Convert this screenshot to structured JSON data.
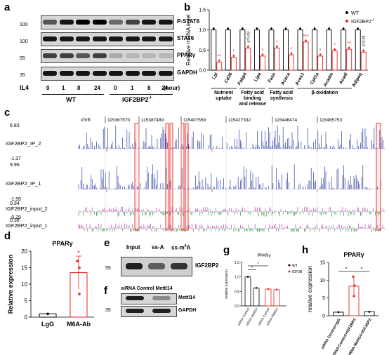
{
  "panel_a": {
    "label": "a",
    "rows": [
      {
        "mw": "100",
        "name": "P-STAT6"
      },
      {
        "mw": "100",
        "name": "STAT6"
      },
      {
        "mw": "55",
        "name": "PPARγ"
      },
      {
        "mw": "35",
        "name": "GAPDH"
      }
    ],
    "il4_label": "IL4",
    "times": [
      "0",
      "1",
      "8",
      "24",
      "0",
      "1",
      "8",
      "24"
    ],
    "unit": "(hour)",
    "wt": "WT",
    "ko": "IGF2BP2",
    "ko_sup": "-/-",
    "band_intensity": {
      "P-STAT6": [
        0.6,
        0.9,
        1.0,
        1.0,
        0.5,
        0.7,
        0.9,
        0.9
      ],
      "STAT6": [
        0.9,
        0.9,
        0.9,
        0.9,
        0.9,
        0.9,
        0.9,
        0.9
      ],
      "PPARγ": [
        0.7,
        0.7,
        0.6,
        0.7,
        0.2,
        0.15,
        0.15,
        0.15
      ],
      "GAPDH": [
        0.9,
        0.9,
        0.9,
        0.9,
        0.9,
        0.9,
        0.9,
        0.9
      ]
    }
  },
  "panel_b": {
    "label": "b",
    "chart_data": {
      "type": "bar",
      "ylabel": "Relative mRNA level",
      "ylim": [
        0,
        1.5
      ],
      "yticks": [
        "0.0",
        "0.5",
        "1.0",
        "1.5"
      ],
      "categories": [
        "Lpl",
        "Cd36",
        "Fabp4",
        "Lipe",
        "Fasn",
        "Acaca",
        "Acox1",
        "Cpt1a",
        "Acadm",
        "Acadl",
        "Adipoq"
      ],
      "series": [
        {
          "name": "WT",
          "color": "#000000",
          "values": [
            1,
            1,
            1,
            1,
            1,
            1,
            1,
            1,
            1,
            1,
            1
          ]
        },
        {
          "name": "IGF2BP2",
          "color": "#e8231f",
          "values": [
            0.2,
            0.32,
            0.55,
            0.35,
            0.55,
            0.38,
            0.7,
            0.35,
            0.48,
            0.52,
            0.45
          ]
        }
      ],
      "sig": [
        "**",
        "*",
        "p=0.09",
        "*",
        "*",
        "*",
        "***",
        "*",
        "*",
        "**",
        "p=0.08"
      ],
      "groups": [
        {
          "label": "Nutrient\nuptake",
          "from": 0,
          "to": 1
        },
        {
          "label": "Fatty acid\nbinding\nand release",
          "from": 2,
          "to": 3
        },
        {
          "label": "Fatty acid\nsynthesis",
          "from": 4,
          "to": 5
        },
        {
          "label": "β-oxidation",
          "from": 6,
          "to": 9
        }
      ],
      "legend": [
        "WT",
        "IGF2BP2"
      ],
      "legend_sup": "-/-"
    }
  },
  "panel_c": {
    "label": "c",
    "chrom": "chr6",
    "coords": [
      "115367570",
      "115387489",
      "115407559",
      "115427332",
      "115446474",
      "115465753"
    ],
    "tracks": [
      {
        "name": "IGF2BP2_IP_2",
        "max": "6.83",
        "min": "-1.37"
      },
      {
        "name": "IGF2BP2_IP_1",
        "max": "9.96",
        "min": "-1.99"
      },
      {
        "name": "IGF2BP2_input_2",
        "max": "0.34",
        "min": "-0.29"
      },
      {
        "name": "IGF2BP2_input_1",
        "max": "0.38",
        "min": "-0.38"
      }
    ]
  },
  "panel_d": {
    "label": "d",
    "chart_data": {
      "type": "bar",
      "title": "PPARγ",
      "ylabel": "Relative expression",
      "ylim": [
        0,
        20
      ],
      "yticks": [
        "0",
        "5",
        "10",
        "15",
        "20"
      ],
      "categories": [
        "LgG",
        "M6A-Ab"
      ],
      "values": [
        1,
        13.5
      ],
      "colors": [
        "#000000",
        "#e8231f"
      ],
      "sig": "*"
    }
  },
  "panel_e": {
    "label": "e",
    "lanes": [
      "Input",
      "ss-A",
      "ss-m"
    ],
    "m6a_sup": "6",
    "m6a_tail": "A",
    "mw": "55",
    "name": "IGF2BP2"
  },
  "panel_f": {
    "label": "f",
    "header": "siRNA Control Mettl14",
    "rows": [
      {
        "mw": "",
        "name": "Mettl14"
      },
      {
        "mw": "35",
        "name": "GAPDH"
      }
    ]
  },
  "panel_g": {
    "label": "g",
    "chart_data": {
      "type": "bar",
      "title": "PPARγ",
      "ylabel": "relative expression",
      "ylim": [
        0,
        1.5
      ],
      "yticks": [
        "0.0",
        "0.5",
        "1.0",
        "1.5"
      ],
      "categories": [
        "siRNA Control",
        "siRNA Mettl14",
        "siRNA Control",
        "siRNA Mettl14"
      ],
      "series_of_bar": [
        "WT",
        "WT",
        "IGF2BP2",
        "IGF2BP2"
      ],
      "values": [
        1.0,
        0.62,
        0.58,
        0.56
      ],
      "legend": [
        "WT",
        "IGF2BP2"
      ],
      "legend_sup": "-/-",
      "sig": [
        "*",
        "*"
      ]
    }
  },
  "panel_h": {
    "label": "h",
    "chart_data": {
      "type": "bar",
      "title": "PPARγ",
      "ylabel": "relative expression",
      "ylim": [
        0,
        15
      ],
      "yticks": [
        "0",
        "5",
        "10",
        "15"
      ],
      "categories": [
        "siRNA Control+IgG",
        "siRNA Control+IGF2BP2",
        "siRNA Mettl14+IGF2BP2"
      ],
      "values": [
        1.0,
        8.3,
        1.1
      ],
      "colors": [
        "#000000",
        "#e8231f",
        "#000000"
      ],
      "sig": [
        "*",
        "*"
      ]
    }
  }
}
